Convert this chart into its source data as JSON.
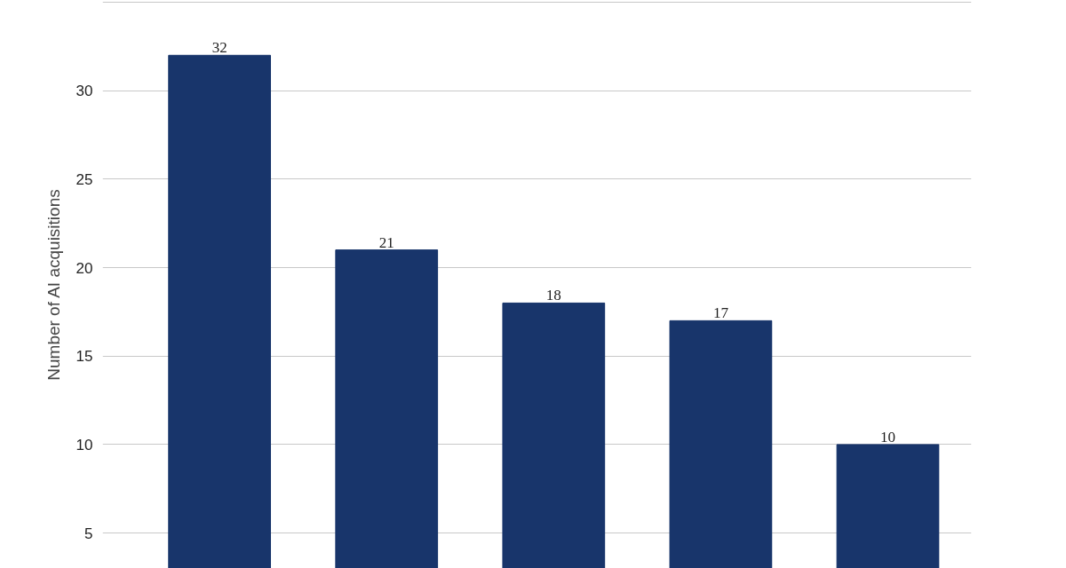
{
  "chart_data": {
    "type": "bar",
    "ylabel": "Number of AI acquisitions",
    "categories": [
      null,
      null,
      null,
      null,
      null
    ],
    "values": [
      32,
      21,
      18,
      17,
      10
    ],
    "color": "#18356b",
    "ylim": [
      3,
      35.1
    ],
    "yticks": [
      5,
      10,
      15,
      20,
      25,
      30,
      {
        "value": 35,
        "label": null
      }
    ],
    "grid": "y",
    "data_labels": true,
    "tick_labels": "y"
  }
}
